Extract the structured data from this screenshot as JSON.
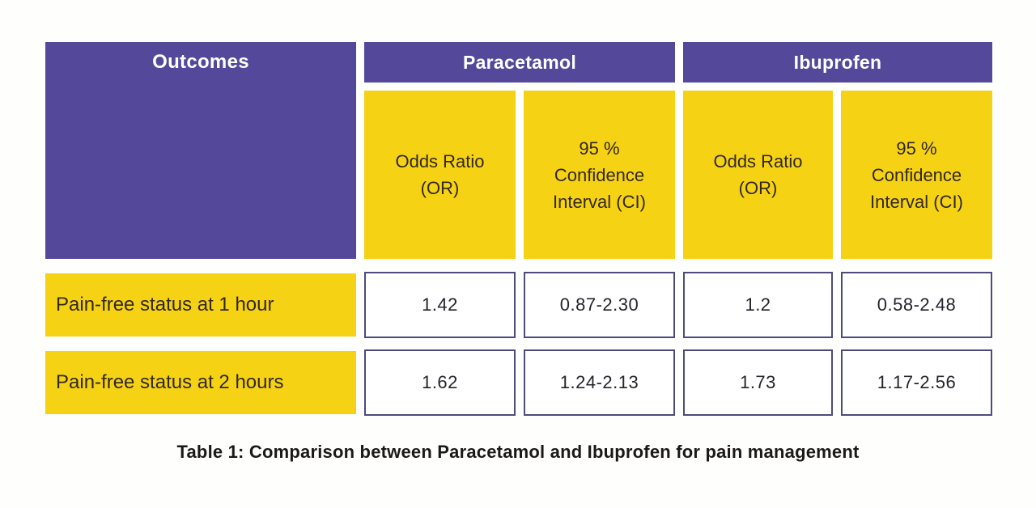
{
  "colors": {
    "purple": "#54489b",
    "yellow": "#f6d214",
    "cell_border": "#4e4a7d",
    "header_text": "#ffffff",
    "dark_text": "#32281c",
    "value_text": "#25232b",
    "caption_text": "#1b1918",
    "background": "#fefefd"
  },
  "table": {
    "corner_header": "Outcomes",
    "group_headers": [
      {
        "label": "Paracetamol"
      },
      {
        "label": "Ibuprofen"
      }
    ],
    "sub_headers": [
      {
        "text": "Odds Ratio (OR)",
        "lines": [
          "Odds Ratio",
          "(OR)"
        ]
      },
      {
        "text": "95 % Confidence Interval (CI)",
        "lines": [
          "95 %",
          "Confidence",
          "Interval (CI)"
        ]
      },
      {
        "text": "Odds Ratio (OR)",
        "lines": [
          "Odds Ratio",
          "(OR)"
        ]
      },
      {
        "text": "95 % Confidence Interval (CI)",
        "lines": [
          "95 %",
          "Confidence",
          "Interval (CI)"
        ]
      }
    ],
    "rows": [
      {
        "label": "Pain-free status at 1 hour",
        "values": [
          "1.42",
          "0.87-2.30",
          "1.2",
          "0.58-2.48"
        ]
      },
      {
        "label": "Pain-free status at 2 hours",
        "values": [
          "1.62",
          "1.24-2.13",
          "1.73",
          "1.17-2.56"
        ]
      }
    ]
  },
  "caption": "Table 1: Comparison between Paracetamol and Ibuprofen for pain management"
}
